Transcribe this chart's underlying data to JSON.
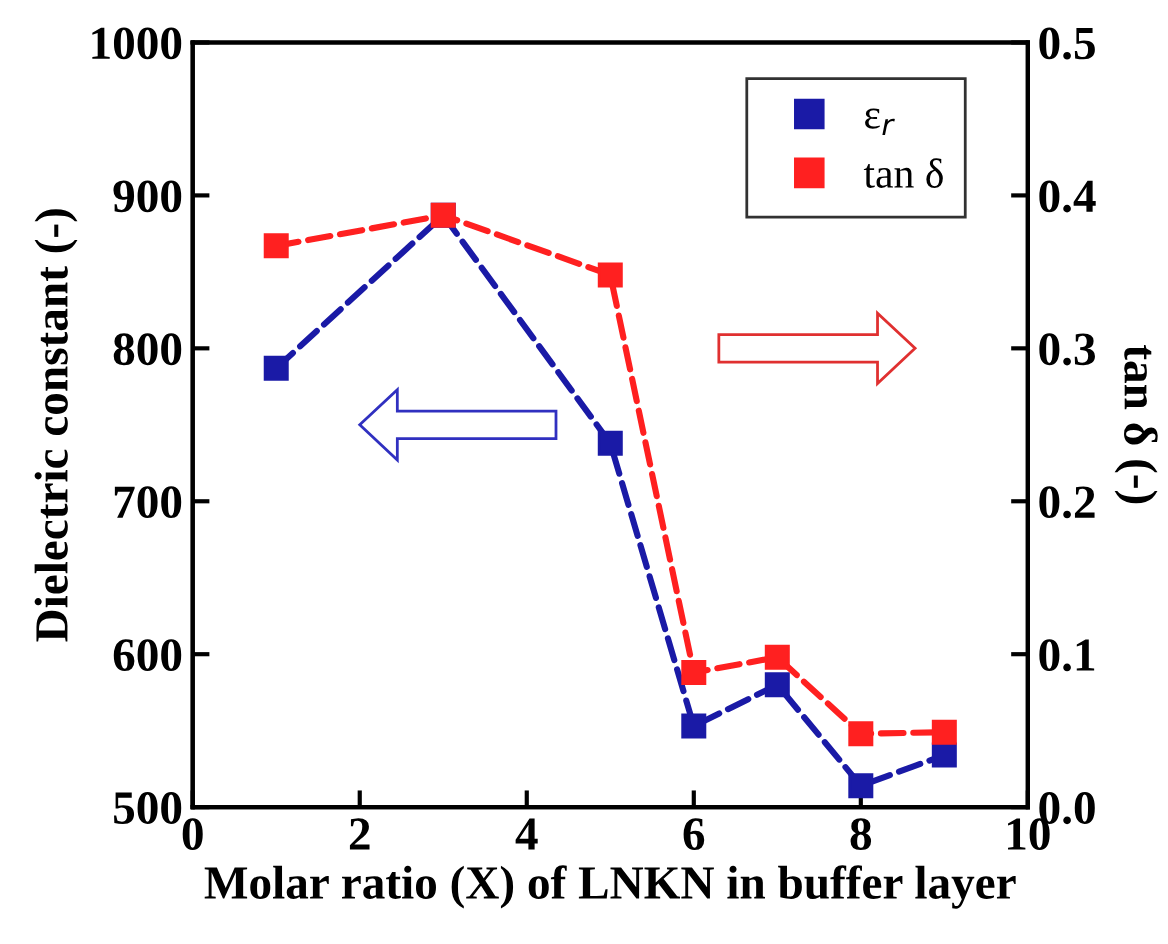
{
  "chart_data": {
    "type": "line",
    "xlabel": "Molar ratio (X) of LNKN in buffer layer",
    "ylabel": "Dielectric constant (-)",
    "y2label": "tan δ (-)",
    "x": [
      1,
      3,
      5,
      6,
      7,
      8,
      9
    ],
    "series": [
      {
        "name": "ε$_{r}$",
        "color": "#1a1aa6",
        "values": [
          787,
          887,
          738,
          553,
          580,
          514,
          534
        ]
      },
      {
        "name": "tan δ",
        "color": "#ff2020",
        "axis": "y2",
        "values": [
          0.367,
          0.387,
          0.348,
          0.088,
          0.098,
          0.048,
          0.049
        ]
      }
    ],
    "xlim": [
      0,
      10
    ],
    "xticks": [
      0,
      2,
      4,
      6,
      8,
      10
    ],
    "ylim": [
      500,
      1000
    ],
    "yticks": [
      500,
      600,
      700,
      800,
      900,
      1000
    ],
    "y2lim": [
      0.0,
      0.5
    ],
    "y2ticks": [
      {
        "value": 0.0,
        "label": "0.0"
      },
      {
        "value": 0.1,
        "label": "0.1"
      },
      {
        "value": 0.2,
        "label": "0.2"
      },
      {
        "value": 0.3,
        "label": "0.3"
      },
      {
        "value": 0.4,
        "label": "0.4"
      },
      {
        "value": 0.5,
        "label": "0.5"
      }
    ],
    "marker": "square",
    "line_style": "dashed",
    "legend": "top right",
    "grid": false
  }
}
